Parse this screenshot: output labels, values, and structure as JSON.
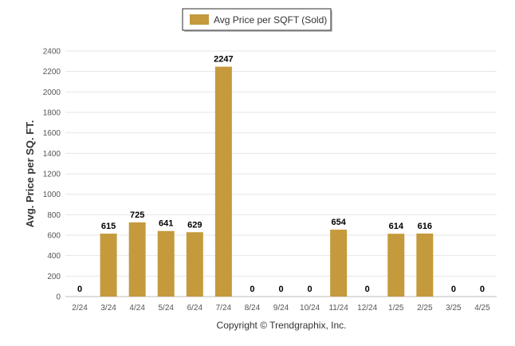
{
  "chart_data": {
    "type": "bar",
    "categories": [
      "2/24",
      "3/24",
      "4/24",
      "5/24",
      "6/24",
      "7/24",
      "8/24",
      "9/24",
      "10/24",
      "11/24",
      "12/24",
      "1/25",
      "2/25",
      "3/25",
      "4/25"
    ],
    "series": [
      {
        "name": "Avg Price per SQFT (Sold)",
        "values": [
          0,
          615,
          725,
          641,
          629,
          2247,
          0,
          0,
          0,
          654,
          0,
          614,
          616,
          0,
          0
        ]
      }
    ],
    "value_labels": [
      "0",
      "615",
      "725",
      "641",
      "629",
      "2247",
      "0",
      "0",
      "0",
      "654",
      "0",
      "614",
      "616",
      "0",
      "0"
    ],
    "ylabel": "Avg. Price per SQ. FT.",
    "ylim": [
      0,
      2400
    ],
    "yticks": [
      "0",
      "200",
      "400",
      "600",
      "800",
      "1000",
      "1200",
      "1400",
      "1600",
      "1800",
      "2000",
      "2200",
      "2400"
    ],
    "grid": true,
    "legend_position": "top-center",
    "bar_color": "#C49A3C",
    "credit": "Copyright © Trendgraphix, Inc."
  }
}
